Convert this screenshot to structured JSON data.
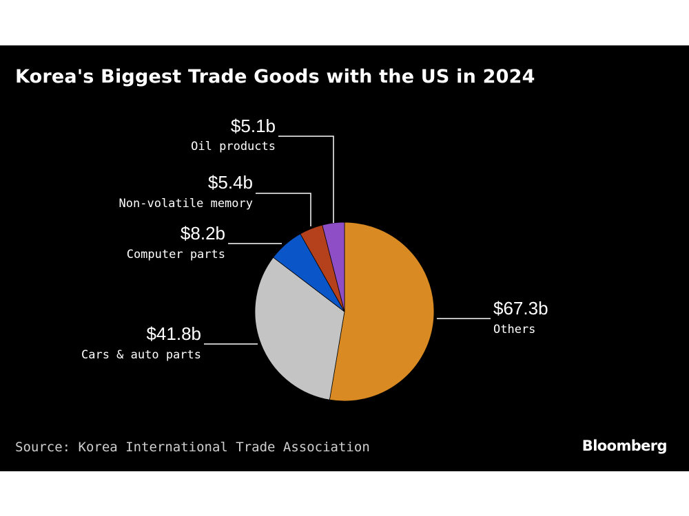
{
  "chart_data": {
    "type": "pie",
    "title": "Korea's Biggest Trade Goods with the US in 2024",
    "unit": "$b",
    "slices": [
      {
        "label": "Others",
        "value": 67.3,
        "value_label": "$67.3b",
        "color": "#d98a22"
      },
      {
        "label": "Cars & auto parts",
        "value": 41.8,
        "value_label": "$41.8b",
        "color": "#c4c4c4"
      },
      {
        "label": "Computer parts",
        "value": 8.2,
        "value_label": "$8.2b",
        "color": "#0a55c8"
      },
      {
        "label": "Non-volatile memory",
        "value": 5.4,
        "value_label": "$5.4b",
        "color": "#b5411c"
      },
      {
        "label": "Oil products",
        "value": 5.1,
        "value_label": "$5.1b",
        "color": "#8e4ec6"
      }
    ]
  },
  "footer": {
    "source": "Source: Korea International Trade Association",
    "brand": "Bloomberg"
  }
}
